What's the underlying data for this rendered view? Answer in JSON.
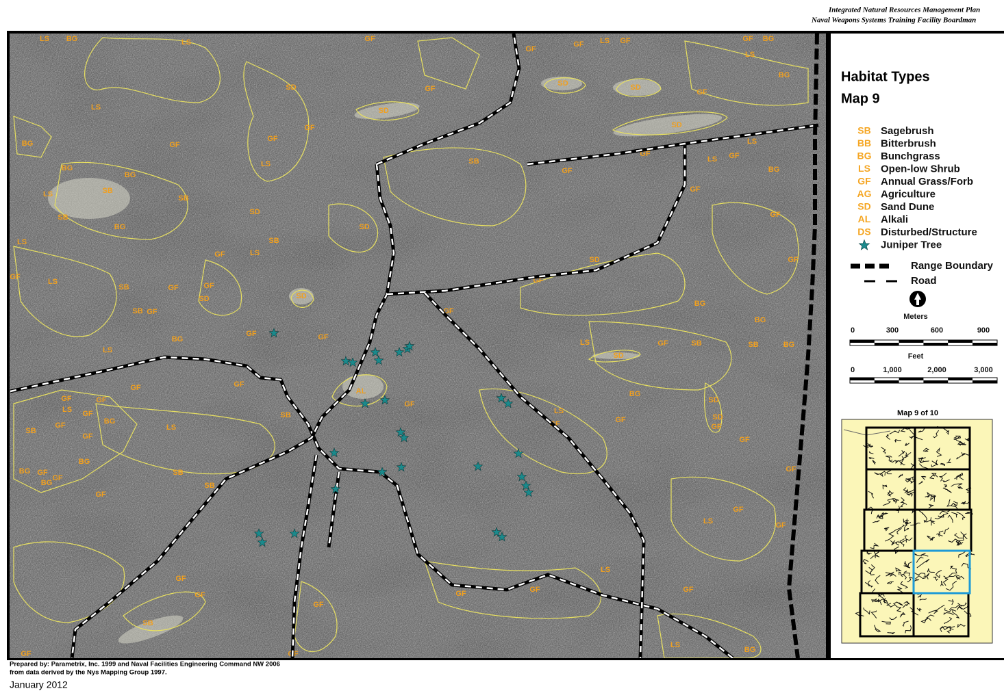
{
  "header": {
    "line1": "Integrated Natural Resources Management Plan",
    "line2": "Naval Weapons Systems Training Facility Boardman"
  },
  "legend": {
    "title": "Habitat Types",
    "subtitle": "Map 9",
    "items": [
      {
        "code": "SB",
        "label": "Sagebrush"
      },
      {
        "code": "BB",
        "label": "Bitterbrush"
      },
      {
        "code": "BG",
        "label": "Bunchgrass"
      },
      {
        "code": "LS",
        "label": "Open-low Shrub"
      },
      {
        "code": "GF",
        "label": "Annual Grass/Forb"
      },
      {
        "code": "AG",
        "label": "Agriculture"
      },
      {
        "code": "SD",
        "label": "Sand Dune"
      },
      {
        "code": "AL",
        "label": "Alkali"
      },
      {
        "code": "DS",
        "label": "Disturbed/Structure"
      },
      {
        "label": "Juniper Tree"
      }
    ],
    "lines": [
      {
        "label": "Range Boundary"
      },
      {
        "label": "Road"
      }
    ],
    "scales": [
      {
        "unit": "Meters",
        "ticks": [
          "0",
          "300",
          "600",
          "900"
        ]
      },
      {
        "unit": "Feet",
        "ticks": [
          "0",
          "1,000",
          "2,000",
          "3,000"
        ]
      }
    ],
    "inset_title": "Map 9 of 10"
  },
  "map_labels": [
    "LS",
    "BG",
    "LS",
    "GF",
    "GF",
    "GF",
    "LS",
    "GF",
    "GF",
    "BG",
    "LS",
    "BG",
    "SD",
    "SD",
    "GF",
    "SD",
    "GF",
    "LS",
    "SD",
    "SD",
    "GF",
    "GF",
    "BG",
    "GF",
    "SB",
    "LS",
    "GF",
    "LS",
    "LS",
    "GF",
    "BG",
    "BG",
    "GF",
    "BG",
    "SB",
    "LS",
    "SB",
    "GF",
    "SB",
    "SD",
    "SD",
    "GF",
    "BG",
    "LS",
    "SB",
    "GF",
    "LS",
    "SD",
    "GF",
    "GF",
    "LS",
    "SB",
    "GF",
    "GF",
    "SD",
    "SD",
    "SB",
    "GF",
    "BG",
    "GF",
    "BG",
    "GF",
    "BG",
    "GF",
    "GF",
    "LS",
    "LS",
    "GF",
    "SB",
    "SB",
    "BG",
    "SD",
    "GF",
    "GF",
    "AL",
    "GF",
    "BG",
    "SD",
    "GF",
    "GF",
    "LS",
    "GF",
    "SB",
    "GF",
    "BG",
    "LS",
    "SB",
    "LS",
    "GF",
    "GF",
    "SD",
    "GF",
    "GF",
    "BG",
    "BG",
    "GF",
    "GF",
    "BG",
    "SB",
    "SB",
    "GF",
    "GF",
    "GF",
    "GF",
    "LS",
    "GF",
    "LS",
    "GF",
    "GF",
    "GF",
    "GF",
    "GF",
    "GF",
    "SB",
    "GF",
    "GF",
    "LS",
    "BG"
  ],
  "footer": {
    "credit1": "Prepared by: Parametrix, Inc. 1999 and Naval Facilities Engineering Command NW 2006",
    "credit2": "from data derived by the Nys Mapping Group 1997.",
    "date": "January 2012"
  }
}
